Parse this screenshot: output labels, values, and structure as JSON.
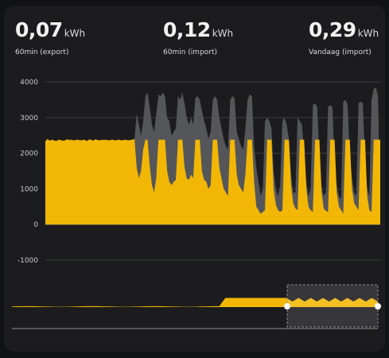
{
  "stats": [
    {
      "value": "0,07",
      "unit": "kWh",
      "label": "60min (export)"
    },
    {
      "value": "0,12",
      "unit": "kWh",
      "label": "60min (import)"
    },
    {
      "value": "0,29",
      "unit": "kWh",
      "label": "Vandaag (import)"
    }
  ],
  "colors": {
    "primary": "#f2b705",
    "secondary": "#55565a",
    "background": "#1c1c1f",
    "grid": "#3a3b3f"
  },
  "chart_data": {
    "type": "area",
    "yticks": [
      4000,
      3000,
      2000,
      1000,
      0,
      -1000
    ],
    "ylim": [
      -1000,
      4000
    ],
    "grid": true,
    "series": [
      {
        "values": [
          2330,
          2400,
          2350,
          2380,
          2360,
          2340,
          2380,
          2370,
          2350,
          2360,
          2390,
          2370,
          2380,
          2360,
          2370,
          2380,
          2360,
          2370,
          2380,
          2340,
          2380,
          2380,
          2350,
          2390,
          2370,
          2360,
          2380,
          2370,
          2380,
          2360,
          2370,
          2380,
          2360,
          2370,
          2380,
          2360,
          2370,
          2380,
          2360,
          2370,
          2380,
          2400,
          1600,
          1300,
          1500,
          2100,
          2380,
          2380,
          1650,
          1100,
          900,
          1300,
          2380,
          2380,
          2380,
          2380,
          1500,
          1200,
          1100,
          1200,
          1250,
          2380,
          2380,
          2380,
          1600,
          1300,
          1250,
          1400,
          1300,
          2380,
          2380,
          2380,
          1500,
          1250,
          1200,
          1000,
          1100,
          2380,
          2380,
          2380,
          1600,
          1300,
          1000,
          900,
          800,
          2380,
          2380,
          2380,
          1400,
          1100,
          1000,
          900,
          1400,
          2380,
          2380,
          2380,
          1200,
          500,
          400,
          300,
          350,
          400,
          2380,
          2380,
          2380,
          1000,
          550,
          400,
          350,
          400,
          2380,
          2380,
          2380,
          1100,
          600,
          450,
          400,
          2380,
          2380,
          2380,
          1000,
          500,
          400,
          350,
          2380,
          2380,
          2380,
          900,
          450,
          380,
          350,
          2380,
          2380,
          2380,
          900,
          500,
          400,
          300,
          2380,
          2380,
          2380,
          1000,
          600,
          500,
          400,
          2380,
          2380,
          2380,
          800,
          400,
          350,
          2380,
          2380,
          2380,
          2380
        ]
      },
      {
        "values": [
          2330,
          2400,
          2350,
          2380,
          2360,
          2340,
          2380,
          2370,
          2350,
          2360,
          2390,
          2370,
          2380,
          2360,
          2370,
          2380,
          2360,
          2370,
          2380,
          2340,
          2380,
          2380,
          2350,
          2390,
          2370,
          2360,
          2380,
          2370,
          2380,
          2360,
          2370,
          2380,
          2360,
          2370,
          2380,
          2360,
          2370,
          2380,
          2360,
          2370,
          2380,
          2400,
          3100,
          2800,
          2500,
          2900,
          3600,
          3700,
          3300,
          2800,
          2600,
          3100,
          3650,
          3600,
          3700,
          3600,
          3000,
          2900,
          2500,
          2600,
          2700,
          3600,
          3500,
          3700,
          3400,
          3000,
          2800,
          3000,
          2800,
          3550,
          3600,
          3500,
          3200,
          2900,
          2700,
          2400,
          2600,
          3500,
          3600,
          3500,
          3000,
          2700,
          2400,
          2200,
          2100,
          3500,
          3600,
          3550,
          2600,
          2400,
          2200,
          2100,
          2700,
          3500,
          3650,
          3600,
          2200,
          1600,
          1200,
          800,
          1000,
          2900,
          3000,
          2900,
          2700,
          1500,
          1000,
          800,
          1100,
          2900,
          3000,
          2800,
          2400,
          1400,
          900,
          900,
          3000,
          2900,
          2800,
          2000,
          1200,
          800,
          1000,
          3350,
          3400,
          3300,
          1900,
          1100,
          800,
          900,
          3300,
          3350,
          3300,
          1700,
          1100,
          800,
          700,
          3450,
          3500,
          3350,
          1900,
          1300,
          900,
          800,
          3400,
          3450,
          3400,
          1800,
          1000,
          800,
          3500,
          3800,
          3850,
          3600
        ]
      }
    ]
  }
}
